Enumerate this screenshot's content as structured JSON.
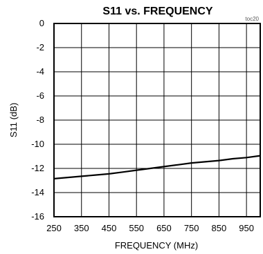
{
  "chart_data": {
    "type": "line",
    "title": "S11 vs. FREQUENCY",
    "tag": "toc20",
    "xlabel": "FREQUENCY (MHz)",
    "ylabel": "S11 (dB)",
    "xlim": [
      250,
      1000
    ],
    "ylim": [
      -16,
      0
    ],
    "x_ticks": [
      250,
      350,
      450,
      550,
      650,
      750,
      850,
      950
    ],
    "y_ticks": [
      0,
      -2,
      -4,
      -6,
      -8,
      -10,
      -12,
      -14,
      -16
    ],
    "x_tick_labels": [
      "250",
      "350",
      "450",
      "550",
      "650",
      "750",
      "850",
      "950"
    ],
    "y_tick_labels": [
      "0",
      "-2",
      "-4",
      "-6",
      "-8",
      "-10",
      "-12",
      "-14",
      "-16"
    ],
    "grid": true,
    "series": [
      {
        "x": [
          250,
          300,
          350,
          400,
          450,
          500,
          550,
          600,
          650,
          700,
          750,
          800,
          850,
          900,
          950,
          1000
        ],
        "values": [
          -12.85,
          -12.75,
          -12.65,
          -12.55,
          -12.45,
          -12.3,
          -12.15,
          -12.0,
          -11.85,
          -11.7,
          -11.55,
          -11.45,
          -11.35,
          -11.2,
          -11.1,
          -10.95
        ]
      }
    ]
  }
}
